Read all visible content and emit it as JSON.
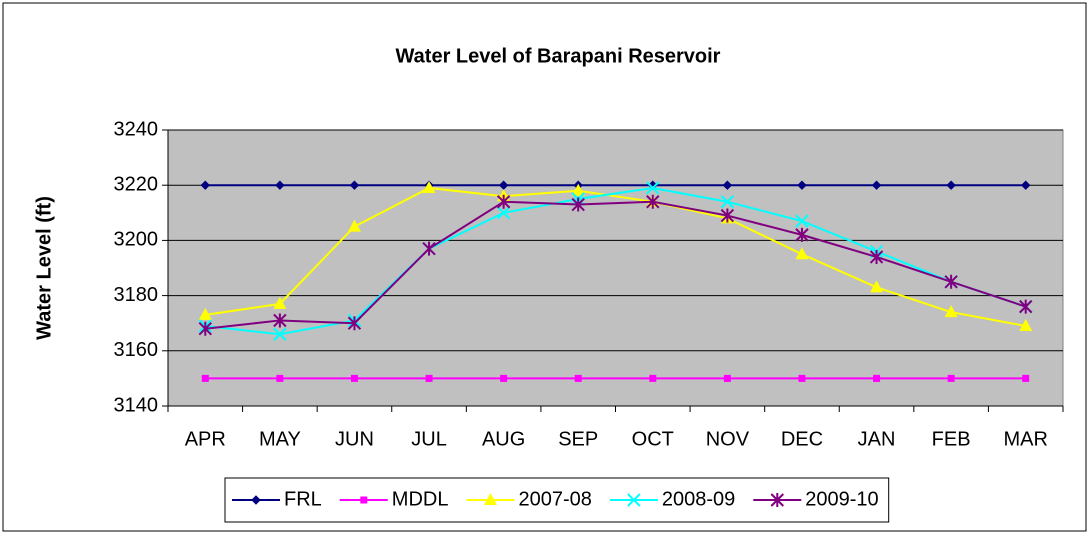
{
  "chart_data": {
    "type": "line",
    "title": "Water Level of Barapani Reservoir",
    "y_label": "Water Level (ft)",
    "categories": [
      "APR",
      "MAY",
      "JUN",
      "JUL",
      "AUG",
      "SEP",
      "OCT",
      "NOV",
      "DEC",
      "JAN",
      "FEB",
      "MAR"
    ],
    "series": [
      {
        "name": "FRL",
        "color": "#000080",
        "marker": "diamond",
        "values": [
          3220,
          3220,
          3220,
          3220,
          3220,
          3220,
          3220,
          3220,
          3220,
          3220,
          3220,
          3220
        ]
      },
      {
        "name": "MDDL",
        "color": "#ff00ff",
        "marker": "square",
        "values": [
          3150,
          3150,
          3150,
          3150,
          3150,
          3150,
          3150,
          3150,
          3150,
          3150,
          3150,
          3150
        ]
      },
      {
        "name": "2007-08",
        "color": "#ffff00",
        "marker": "triangle",
        "values": [
          3173,
          3177,
          3205,
          3219,
          3216,
          3218,
          3214,
          3208,
          3195,
          3183,
          3174,
          3169
        ]
      },
      {
        "name": "2008-09",
        "color": "#00ffff",
        "marker": "x",
        "values": [
          3169,
          3166,
          3171,
          3197,
          3210,
          3215,
          3219,
          3214,
          3207,
          3196,
          3185,
          3176
        ]
      },
      {
        "name": "2009-10",
        "color": "#800080",
        "marker": "star",
        "values": [
          3168,
          3171,
          3170,
          3197,
          3214,
          3213,
          3214,
          3209,
          3202,
          3194,
          3185,
          3176
        ]
      }
    ],
    "ylim": [
      3140,
      3240
    ],
    "yticks": [
      3140,
      3160,
      3180,
      3200,
      3220,
      3240
    ],
    "grid": true,
    "legend": "bottom"
  }
}
